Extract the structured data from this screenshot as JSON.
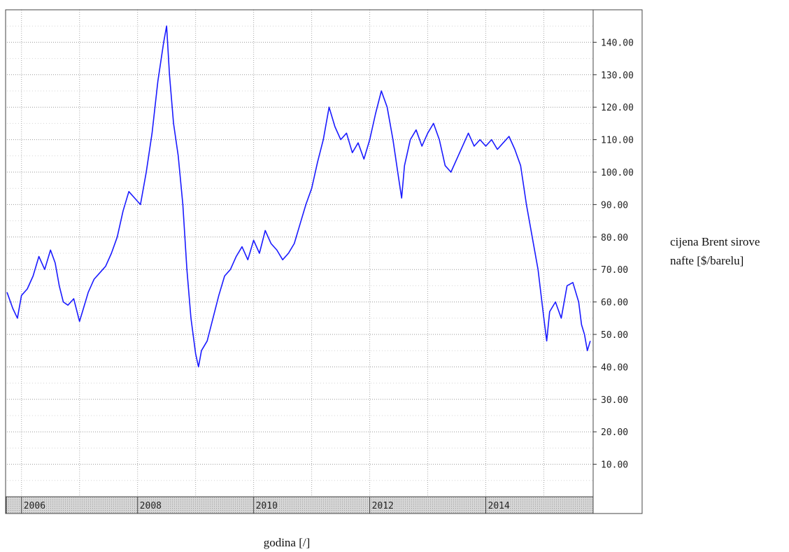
{
  "chart_data": {
    "type": "line",
    "title": "",
    "xlabel": "godina [/]",
    "ylabel": "cijena Brent sirove nafte [$/barelu]",
    "ylabel_lines": [
      "cijena Brent sirove",
      "nafte [$/barelu]"
    ],
    "x_ticks": [
      "2006",
      "2008",
      "2010",
      "2012",
      "2014"
    ],
    "y_ticks": [
      "10.00",
      "20.00",
      "30.00",
      "40.00",
      "50.00",
      "60.00",
      "70.00",
      "80.00",
      "90.00",
      "100.00",
      "110.00",
      "120.00",
      "130.00",
      "140.00"
    ],
    "xlim": [
      2005.75,
      2015.85
    ],
    "ylim": [
      0,
      150
    ],
    "grid": true,
    "y_axis_position": "right",
    "series": [
      {
        "name": "",
        "color": "#1a1aff",
        "x": [
          2005.75,
          2005.85,
          2005.93,
          2006.0,
          2006.1,
          2006.2,
          2006.3,
          2006.4,
          2006.5,
          2006.58,
          2006.65,
          2006.72,
          2006.8,
          2006.9,
          2007.0,
          2007.05,
          2007.15,
          2007.25,
          2007.35,
          2007.45,
          2007.55,
          2007.65,
          2007.75,
          2007.85,
          2007.95,
          2008.05,
          2008.15,
          2008.25,
          2008.35,
          2008.45,
          2008.5,
          2008.55,
          2008.62,
          2008.7,
          2008.78,
          2008.85,
          2008.92,
          2009.0,
          2009.05,
          2009.1,
          2009.2,
          2009.3,
          2009.4,
          2009.5,
          2009.6,
          2009.7,
          2009.8,
          2009.9,
          2010.0,
          2010.1,
          2010.2,
          2010.3,
          2010.4,
          2010.5,
          2010.6,
          2010.7,
          2010.8,
          2010.9,
          2011.0,
          2011.1,
          2011.2,
          2011.3,
          2011.4,
          2011.5,
          2011.6,
          2011.7,
          2011.8,
          2011.9,
          2012.0,
          2012.1,
          2012.2,
          2012.3,
          2012.4,
          2012.5,
          2012.55,
          2012.6,
          2012.7,
          2012.8,
          2012.9,
          2013.0,
          2013.1,
          2013.2,
          2013.3,
          2013.4,
          2013.5,
          2013.6,
          2013.7,
          2013.8,
          2013.9,
          2014.0,
          2014.1,
          2014.2,
          2014.3,
          2014.4,
          2014.5,
          2014.6,
          2014.7,
          2014.8,
          2014.9,
          2015.0,
          2015.05,
          2015.1,
          2015.2,
          2015.3,
          2015.4,
          2015.5,
          2015.6,
          2015.65,
          2015.7,
          2015.75,
          2015.8
        ],
        "values": [
          63,
          58,
          55,
          62,
          64,
          68,
          74,
          70,
          76,
          72,
          65,
          60,
          59,
          61,
          54,
          57,
          63,
          67,
          69,
          71,
          75,
          80,
          88,
          94,
          92,
          90,
          100,
          112,
          128,
          140,
          145,
          130,
          115,
          105,
          90,
          70,
          55,
          44,
          40,
          45,
          48,
          55,
          62,
          68,
          70,
          74,
          77,
          73,
          79,
          75,
          82,
          78,
          76,
          73,
          75,
          78,
          84,
          90,
          95,
          103,
          110,
          120,
          114,
          110,
          112,
          106,
          109,
          104,
          110,
          118,
          125,
          120,
          110,
          98,
          92,
          102,
          110,
          113,
          108,
          112,
          115,
          110,
          102,
          100,
          104,
          108,
          112,
          108,
          110,
          108,
          110,
          107,
          109,
          111,
          107,
          102,
          90,
          80,
          70,
          55,
          48,
          57,
          60,
          55,
          65,
          66,
          60,
          53,
          50,
          45,
          48
        ]
      }
    ]
  }
}
